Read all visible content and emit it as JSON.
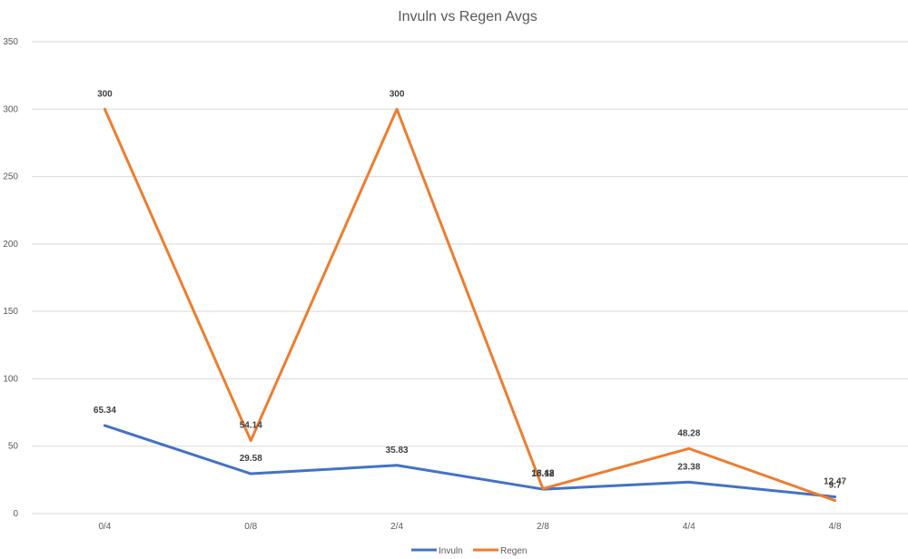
{
  "chart_data": {
    "type": "line",
    "title": "Invuln vs Regen Avgs",
    "categories": [
      "0/4",
      "0/8",
      "2/4",
      "2/8",
      "4/4",
      "4/8"
    ],
    "series": [
      {
        "name": "Invuln",
        "values": [
          65.34,
          29.58,
          35.83,
          18.12,
          23.38,
          12.47
        ],
        "color": "#4472c4",
        "labels": [
          "65.34",
          "29.58",
          "35.83",
          "18.12",
          "23.38",
          "12.47"
        ]
      },
      {
        "name": "Regen",
        "values": [
          300,
          54.14,
          300,
          18.48,
          48.28,
          9.7
        ],
        "color": "#ed7d31",
        "labels": [
          "300",
          "54.14",
          "300",
          "18.48",
          "48.28",
          "9.7"
        ]
      }
    ],
    "y_ticks": [
      "0",
      "50",
      "100",
      "150",
      "200",
      "250",
      "300",
      "350"
    ],
    "ylim": [
      0,
      350
    ],
    "grid": true,
    "legend": "bottom"
  }
}
